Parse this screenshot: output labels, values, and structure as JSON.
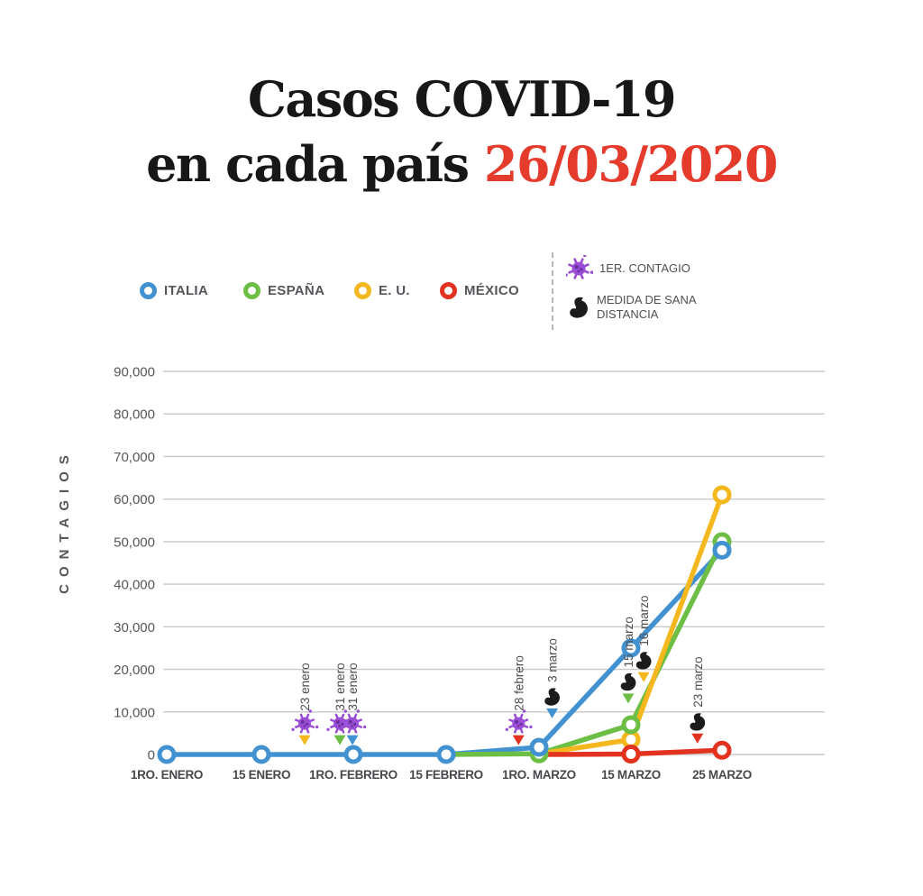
{
  "title": {
    "line1": "Casos COVID-19",
    "line2_black": "en cada país",
    "line2_red": "26/03/2020"
  },
  "legend": {
    "countries": [
      {
        "label": "ITALIA",
        "color": "#4292d2"
      },
      {
        "label": "ESPAÑA",
        "color": "#6cbe44"
      },
      {
        "label": "E. U.",
        "color": "#f4b71d"
      },
      {
        "label": "MÉXICO",
        "color": "#e1331f"
      }
    ],
    "markers": [
      {
        "label": "1ER. CONTAGIO",
        "icon": "virus-icon",
        "color": "#9a4ed6"
      },
      {
        "label": "MEDIDA DE SANA DISTANCIA",
        "icon": "flexed-arm-icon",
        "color": "#1b1b1b"
      }
    ]
  },
  "chart_data": {
    "type": "line",
    "title": "Casos COVID-19 en cada país 26/03/2020",
    "xlabel": "",
    "ylabel": "CONTAGIOS",
    "ylim": [
      0,
      90000
    ],
    "ytick_step": 10000,
    "grid": true,
    "legend_position": "top",
    "categories": [
      "1RO. ENERO",
      "15 ENERO",
      "1RO. FEBRERO",
      "15 FEBRERO",
      "1RO. MARZO",
      "15 MARZO",
      "25 MARZO"
    ],
    "category_days": [
      0,
      14,
      31,
      45,
      60,
      74,
      84
    ],
    "series": [
      {
        "name": "ITALIA",
        "color": "#4292d2",
        "values": [
          0,
          0,
          0,
          0,
          1700,
          25000,
          48000
        ],
        "marker_indices": [
          0,
          1,
          2,
          3,
          4,
          5,
          6
        ]
      },
      {
        "name": "ESPAÑA",
        "color": "#6cbe44",
        "values": [
          null,
          null,
          null,
          0,
          150,
          7000,
          50000
        ],
        "marker_indices": [
          4,
          5,
          6
        ]
      },
      {
        "name": "E. U.",
        "color": "#f4b71d",
        "values": [
          null,
          null,
          null,
          null,
          150,
          3500,
          61000
        ],
        "marker_indices": [
          5,
          6
        ]
      },
      {
        "name": "MÉXICO",
        "color": "#e1331f",
        "values": [
          null,
          null,
          null,
          null,
          0,
          100,
          1000
        ],
        "marker_indices": [
          5,
          6
        ]
      }
    ],
    "icon_colors": {
      "virus": "#9a4ed6",
      "arm": "#1b1b1b"
    },
    "annotations": [
      {
        "label": "23 enero",
        "icon": "virus",
        "series": "E. U.",
        "color": "#f4b71d",
        "day": 22,
        "dx": 0,
        "tip_value": 2200
      },
      {
        "label": "31 enero",
        "icon": "virus",
        "series": "ESPAÑA",
        "color": "#6cbe44",
        "day": 30,
        "dx": -9,
        "tip_value": 2200
      },
      {
        "label": "31 enero",
        "icon": "virus",
        "series": "ITALIA",
        "color": "#4292d2",
        "day": 30,
        "dx": 5,
        "tip_value": 2200
      },
      {
        "label": "28 febrero",
        "icon": "virus",
        "series": "MÉXICO",
        "color": "#e1331f",
        "day": 58,
        "dx": -9,
        "tip_value": 2200
      },
      {
        "label": "3 marzo",
        "icon": "arm",
        "series": "ITALIA",
        "color": "#4292d2",
        "day": 62,
        "dx": 0,
        "tip_value": 8500
      },
      {
        "label": "15 marzo",
        "icon": "arm",
        "series": "ESPAÑA",
        "color": "#6cbe44",
        "day": 74,
        "dx": -3,
        "tip_value": 12000
      },
      {
        "label": "16 marzo",
        "icon": "arm",
        "series": "E. U.",
        "color": "#f4b71d",
        "day": 75,
        "dx": 4,
        "tip_value": 17000
      },
      {
        "label": "23 marzo",
        "icon": "arm",
        "series": "MÉXICO",
        "color": "#e1331f",
        "day": 82,
        "dx": -7,
        "tip_value": 2600
      }
    ]
  }
}
